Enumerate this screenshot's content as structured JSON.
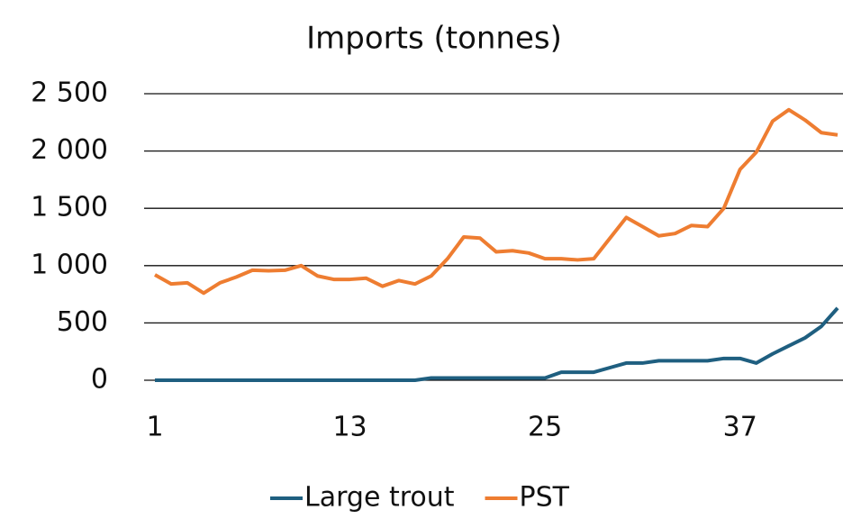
{
  "chart_data": {
    "type": "line",
    "title": "Imports (tonnes)",
    "categories": [
      "1",
      null,
      null,
      null,
      null,
      null,
      null,
      null,
      null,
      null,
      null,
      null,
      "13",
      null,
      null,
      null,
      null,
      null,
      null,
      null,
      null,
      null,
      null,
      null,
      "25",
      null,
      null,
      null,
      null,
      null,
      null,
      null,
      null,
      null,
      null,
      null,
      "37",
      null,
      null,
      null,
      null,
      null,
      null
    ],
    "series": [
      {
        "name": "Large trout",
        "color": "#1f5f80",
        "values": [
          0,
          0,
          0,
          0,
          0,
          0,
          0,
          0,
          0,
          0,
          0,
          0,
          0,
          0,
          0,
          0,
          0,
          20,
          20,
          20,
          20,
          20,
          20,
          20,
          20,
          70,
          70,
          70,
          110,
          150,
          150,
          170,
          170,
          170,
          170,
          190,
          190,
          150,
          230,
          300,
          370,
          470,
          630
        ]
      },
      {
        "name": "PST",
        "color": "#ee7d31",
        "values": [
          920,
          840,
          850,
          760,
          850,
          900,
          960,
          955,
          960,
          1000,
          910,
          880,
          880,
          890,
          820,
          870,
          840,
          910,
          1060,
          1250,
          1240,
          1120,
          1130,
          1110,
          1060,
          1060,
          1050,
          1060,
          1240,
          1420,
          1340,
          1260,
          1280,
          1350,
          1340,
          1500,
          1840,
          1990,
          2260,
          2360,
          2270,
          2160,
          2140
        ]
      }
    ],
    "ylim": [
      0,
      2500
    ],
    "yticks": [
      0,
      500,
      {
        "value": 1000,
        "label": "1 000"
      },
      {
        "value": 1500,
        "label": "1 500"
      },
      {
        "value": 2000,
        "label": "2 000"
      },
      {
        "value": 2500,
        "label": "2 500"
      }
    ],
    "grid": true,
    "legend": "bottom"
  }
}
